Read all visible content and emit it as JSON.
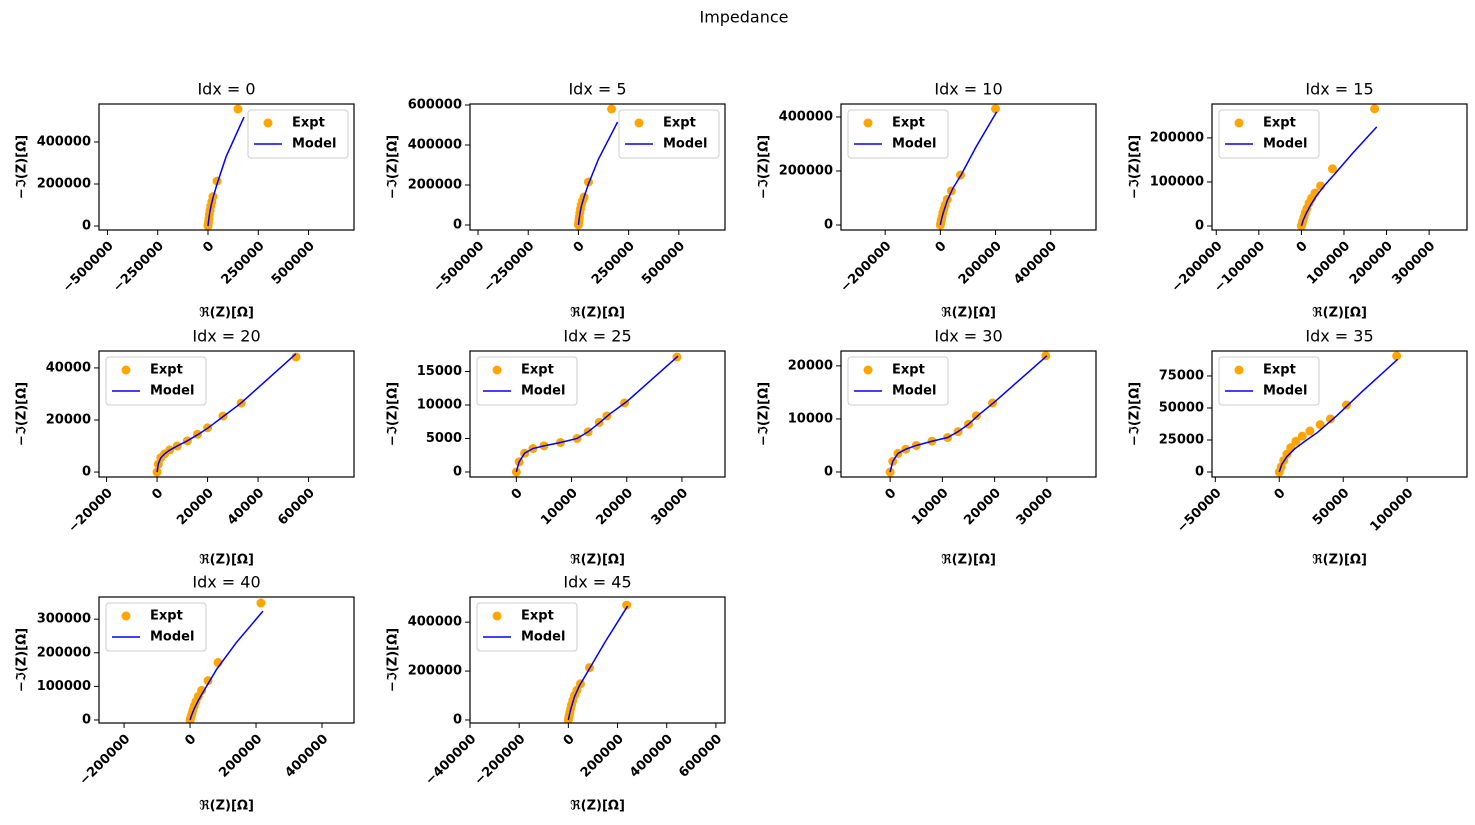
{
  "title": "Impedance",
  "chart_data": [
    {
      "type": "line",
      "title": "Idx = 0",
      "xlabel": "ℜ(Z)[Ω]",
      "ylabel": "−ℑ(Z)[Ω]",
      "legend": "upper right",
      "xlim": [
        -542000,
        726000
      ],
      "ylim": [
        -19000,
        581000
      ],
      "xticks": [
        {
          "value": -500000,
          "label": "−500000"
        },
        {
          "value": -250000,
          "label": "−250000"
        },
        0,
        250000,
        500000
      ],
      "yticks": [
        0,
        200000,
        400000
      ],
      "series": [
        {
          "name": "Expt",
          "color": "orange",
          "marker": "o",
          "line": false,
          "x": [
            0,
            1000,
            2500,
            4500,
            7000,
            10000,
            14000,
            19000,
            25000,
            45000,
            149000
          ],
          "values": [
            0,
            8000,
            20000,
            35000,
            55000,
            75000,
            95000,
            115000,
            140000,
            214000,
            557000
          ]
        },
        {
          "name": "Model",
          "color": "blue",
          "line": true,
          "x": [
            0,
            3000,
            8000,
            15000,
            25000,
            45000,
            90000,
            179000
          ],
          "values": [
            0,
            25000,
            60000,
            95000,
            135000,
            200000,
            330000,
            519000
          ]
        }
      ]
    },
    {
      "type": "line",
      "title": "Idx = 5",
      "xlabel": "ℜ(Z)[Ω]",
      "ylabel": "−ℑ(Z)[Ω]",
      "legend": "upper right",
      "xlim": [
        -540000,
        730000
      ],
      "ylim": [
        -25000,
        605000
      ],
      "xticks": [
        {
          "value": -500000,
          "label": "−500000"
        },
        {
          "value": -250000,
          "label": "−250000"
        },
        0,
        250000,
        500000
      ],
      "yticks": [
        0,
        200000,
        400000,
        600000
      ],
      "series": [
        {
          "name": "Expt",
          "color": "orange",
          "marker": "o",
          "line": false,
          "x": [
            0,
            1000,
            2500,
            4500,
            7000,
            10000,
            14000,
            20000,
            28000,
            50000,
            165000
          ],
          "values": [
            0,
            10000,
            25000,
            40000,
            60000,
            80000,
            100000,
            120000,
            140000,
            215000,
            580000
          ]
        },
        {
          "name": "Model",
          "color": "blue",
          "line": true,
          "x": [
            0,
            3000,
            8000,
            15000,
            28000,
            50000,
            100000,
            195000
          ],
          "values": [
            0,
            25000,
            60000,
            95000,
            140000,
            205000,
            330000,
            515000
          ]
        }
      ]
    },
    {
      "type": "line",
      "title": "Idx = 10",
      "xlabel": "ℜ(Z)[Ω]",
      "ylabel": "−ℑ(Z)[Ω]",
      "legend": "upper left",
      "xlim": [
        -360000,
        564000
      ],
      "ylim": [
        -18500,
        448000
      ],
      "xticks": [
        {
          "value": -200000,
          "label": "−200000"
        },
        0,
        200000,
        400000
      ],
      "yticks": [
        0,
        200000,
        400000
      ],
      "series": [
        {
          "name": "Expt",
          "color": "orange",
          "marker": "o",
          "line": false,
          "x": [
            0,
            1500,
            3500,
            6000,
            9000,
            13000,
            18000,
            25000,
            40000,
            73000,
            200000
          ],
          "values": [
            0,
            8000,
            18000,
            30000,
            45000,
            60000,
            75000,
            95000,
            126000,
            185000,
            430000
          ]
        },
        {
          "name": "Model",
          "color": "blue",
          "line": true,
          "x": [
            0,
            5000,
            12000,
            25000,
            45000,
            75000,
            130000,
            204000
          ],
          "values": [
            0,
            25000,
            50000,
            90000,
            135000,
            185000,
            290000,
            419000
          ]
        }
      ]
    },
    {
      "type": "line",
      "title": "Idx = 15",
      "xlabel": "ℜ(Z)[Ω]",
      "ylabel": "−ℑ(Z)[Ω]",
      "legend": "upper left",
      "xlim": [
        -210000,
        389000
      ],
      "ylim": [
        -9000,
        277000
      ],
      "xticks": [
        {
          "value": -200000,
          "label": "−200000"
        },
        {
          "value": -100000,
          "label": "−100000"
        },
        0,
        100000,
        200000,
        300000
      ],
      "yticks": [
        0,
        100000,
        200000
      ],
      "series": [
        {
          "name": "Expt",
          "color": "orange",
          "marker": "o",
          "line": false,
          "x": [
            0,
            1500,
            3500,
            6000,
            9000,
            13000,
            18000,
            24000,
            32000,
            45000,
            73000,
            172000
          ],
          "values": [
            0,
            5000,
            12000,
            20000,
            30000,
            40000,
            52000,
            63000,
            75000,
            91000,
            130000,
            266000
          ]
        },
        {
          "name": "Model",
          "color": "blue",
          "line": true,
          "x": [
            0,
            5000,
            12000,
            22000,
            35000,
            55000,
            80000,
            120000,
            177000
          ],
          "values": [
            0,
            15000,
            30000,
            48000,
            68000,
            93000,
            120000,
            165000,
            225000
          ]
        }
      ]
    },
    {
      "type": "line",
      "title": "Idx = 20",
      "xlabel": "ℜ(Z)[Ω]",
      "ylabel": "−ℑ(Z)[Ω]",
      "legend": "upper left",
      "xlim": [
        -23000,
        78000
      ],
      "ylim": [
        -1900,
        46500
      ],
      "xticks": [
        {
          "value": -20000,
          "label": "−20000"
        },
        0,
        20000,
        40000,
        60000
      ],
      "yticks": [
        0,
        20000,
        40000
      ],
      "series": [
        {
          "name": "Expt",
          "color": "orange",
          "marker": "o",
          "line": false,
          "x": [
            0,
            500,
            1500,
            3000,
            5000,
            8000,
            12000,
            16000,
            20000,
            26100,
            33300,
            55000
          ],
          "values": [
            0,
            3000,
            5500,
            7000,
            8500,
            10000,
            12000,
            14500,
            17000,
            21500,
            26500,
            44200
          ]
        },
        {
          "name": "Model",
          "color": "blue",
          "line": true,
          "x": [
            0,
            500,
            1500,
            3000,
            5000,
            8000,
            12000,
            16000,
            20000,
            26000,
            33000,
            55000
          ],
          "values": [
            0,
            3200,
            5500,
            7000,
            8400,
            10000,
            12000,
            14300,
            16800,
            21200,
            26300,
            45400
          ]
        }
      ]
    },
    {
      "type": "line",
      "title": "Idx = 25",
      "xlabel": "ℜ(Z)[Ω]",
      "ylabel": "−ℑ(Z)[Ω]",
      "legend": "upper left",
      "xlim": [
        -8400,
        37800
      ],
      "ylim": [
        -750,
        18060
      ],
      "xticks": [
        0,
        10000,
        20000,
        30000
      ],
      "yticks": [
        0,
        5000,
        10000,
        15000
      ],
      "series": [
        {
          "name": "Expt",
          "color": "orange",
          "marker": "o",
          "line": false,
          "x": [
            0,
            500,
            1500,
            3000,
            5000,
            8000,
            11000,
            13000,
            15000,
            16400,
            19600,
            29100
          ],
          "values": [
            0,
            1500,
            2800,
            3500,
            3900,
            4400,
            5000,
            6000,
            7400,
            8360,
            10300,
            17160
          ]
        },
        {
          "name": "Model",
          "color": "blue",
          "line": true,
          "x": [
            0,
            500,
            1500,
            3000,
            5000,
            8000,
            11000,
            13000,
            15000,
            17000,
            20000,
            29300
          ],
          "values": [
            0,
            1500,
            2800,
            3500,
            3900,
            4400,
            5000,
            6000,
            7300,
            8700,
            10500,
            17300
          ]
        }
      ]
    },
    {
      "type": "line",
      "title": "Idx = 30",
      "xlabel": "ℜ(Z)[Ω]",
      "ylabel": "−ℑ(Z)[Ω]",
      "legend": "upper left",
      "xlim": [
        -9400,
        39400
      ],
      "ylim": [
        -940,
        22800
      ],
      "xticks": [
        0,
        10000,
        20000,
        30000
      ],
      "yticks": [
        0,
        10000,
        20000
      ],
      "series": [
        {
          "name": "Expt",
          "color": "orange",
          "marker": "o",
          "line": false,
          "x": [
            0,
            500,
            1500,
            3000,
            5000,
            8000,
            11000,
            13000,
            15000,
            16500,
            19600,
            29800
          ],
          "values": [
            0,
            2000,
            3500,
            4300,
            5000,
            5800,
            6500,
            7600,
            9000,
            10600,
            13000,
            21900
          ]
        },
        {
          "name": "Model",
          "color": "blue",
          "line": true,
          "x": [
            0,
            500,
            1500,
            3000,
            5000,
            8000,
            11000,
            13000,
            15000,
            17000,
            20000,
            30000
          ],
          "values": [
            0,
            2000,
            3500,
            4300,
            5000,
            5800,
            6500,
            7600,
            9000,
            10800,
            13200,
            21900
          ]
        }
      ]
    },
    {
      "type": "line",
      "title": "Idx = 35",
      "xlabel": "ℜ(Z)[Ω]",
      "ylabel": "−ℑ(Z)[Ω]",
      "legend": "upper left",
      "xlim": [
        -52600,
        146800
      ],
      "ylim": [
        -3900,
        94500
      ],
      "xticks": [
        {
          "value": -50000,
          "label": "−50000"
        },
        0,
        50000,
        100000
      ],
      "yticks": [
        0,
        25000,
        50000,
        75000
      ],
      "series": [
        {
          "name": "Expt",
          "color": "orange",
          "marker": "o",
          "line": false,
          "x": [
            0,
            1500,
            3500,
            6000,
            9000,
            13000,
            18000,
            24000,
            32000,
            40000,
            52600,
            91800
          ],
          "values": [
            0,
            4000,
            9000,
            14000,
            19000,
            24000,
            28000,
            32000,
            37000,
            41400,
            52300,
            90600
          ]
        },
        {
          "name": "Model",
          "color": "blue",
          "line": true,
          "x": [
            0,
            2000,
            6000,
            12000,
            20000,
            30000,
            45000,
            65000,
            92600
          ],
          "values": [
            0,
            6000,
            12000,
            18000,
            24000,
            31000,
            44000,
            63000,
            88000
          ]
        }
      ]
    },
    {
      "type": "line",
      "title": "Idx = 40",
      "xlabel": "ℜ(Z)[Ω]",
      "ylabel": "−ℑ(Z)[Ω]",
      "legend": "upper left",
      "xlim": [
        -276000,
        497000
      ],
      "ylim": [
        -9000,
        366000
      ],
      "xticks": [
        {
          "value": -200000,
          "label": "−200000"
        },
        0,
        200000,
        400000
      ],
      "yticks": [
        0,
        100000,
        200000,
        300000
      ],
      "series": [
        {
          "name": "Expt",
          "color": "orange",
          "marker": "o",
          "line": false,
          "x": [
            0,
            1500,
            3500,
            6000,
            9000,
            13000,
            18000,
            25000,
            35000,
            54500,
            85000,
            215000
          ],
          "values": [
            0,
            5000,
            12000,
            20000,
            30000,
            42000,
            55000,
            70000,
            88000,
            117000,
            171000,
            348000
          ]
        },
        {
          "name": "Model",
          "color": "blue",
          "line": true,
          "x": [
            0,
            5000,
            12000,
            25000,
            45000,
            80000,
            140000,
            221000
          ],
          "values": [
            0,
            15000,
            32000,
            58000,
            92000,
            150000,
            230000,
            324000
          ]
        }
      ]
    },
    {
      "type": "line",
      "title": "Idx = 45",
      "xlabel": "ℜ(Z)[Ω]",
      "ylabel": "−ℑ(Z)[Ω]",
      "legend": "upper left",
      "xlim": [
        -400000,
        637000
      ],
      "ylim": [
        -12400,
        503000
      ],
      "xticks": [
        {
          "value": -400000,
          "label": "−400000"
        },
        {
          "value": -200000,
          "label": "−200000"
        },
        0,
        200000,
        400000,
        600000
      ],
      "yticks": [
        0,
        200000,
        400000
      ],
      "series": [
        {
          "name": "Expt",
          "color": "orange",
          "marker": "o",
          "line": false,
          "x": [
            0,
            1500,
            3500,
            6000,
            9000,
            13000,
            18000,
            25000,
            35000,
            49000,
            86000,
            237000
          ],
          "values": [
            0,
            8000,
            18000,
            30000,
            45000,
            62000,
            80000,
            100000,
            122000,
            148000,
            214000,
            470000
          ]
        },
        {
          "name": "Model",
          "color": "blue",
          "line": true,
          "x": [
            0,
            5000,
            12000,
            25000,
            45000,
            80000,
            150000,
            241000
          ],
          "values": [
            0,
            25000,
            52000,
            95000,
            140000,
            200000,
            320000,
            466000
          ]
        }
      ]
    }
  ]
}
